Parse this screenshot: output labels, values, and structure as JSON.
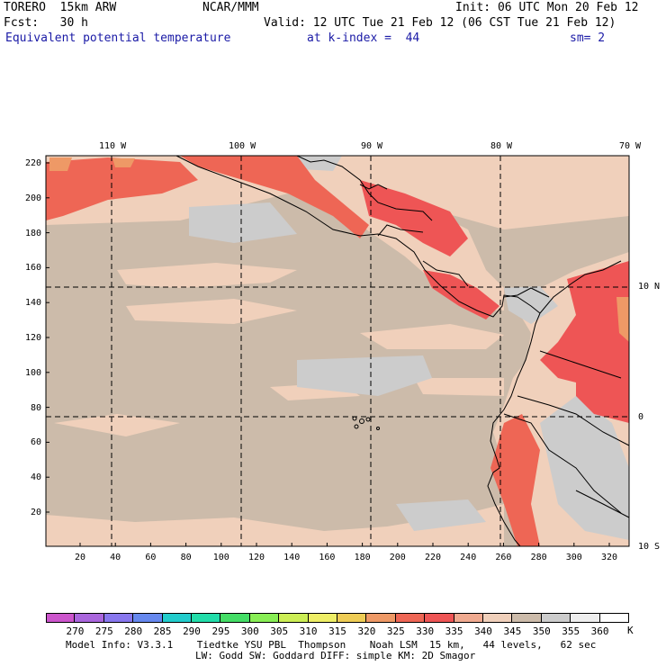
{
  "header": {
    "model": "TORERO  15km ARW",
    "org": "NCAR/MMM",
    "init": "Init: 06 UTC Mon 20 Feb 12",
    "fcst": "Fcst:   30 h",
    "valid": "Valid: 12 UTC Tue 21 Feb 12 (06 CST Tue 21 Feb 12)",
    "field": "Equivalent potential temperature",
    "level": "at k-index =  44",
    "smooth": "sm= 2"
  },
  "map": {
    "lon_labels": [
      "110 W",
      "100 W",
      "90 W",
      "80 W",
      "70 W"
    ],
    "lat_labels": [
      "10 N",
      "0",
      "10 S"
    ],
    "y_ticks": [
      "220",
      "200",
      "180",
      "160",
      "140",
      "120",
      "100",
      "80",
      "60",
      "40",
      "20"
    ],
    "x_ticks": [
      "20",
      "40",
      "60",
      "80",
      "100",
      "120",
      "140",
      "160",
      "180",
      "200",
      "220",
      "240",
      "260",
      "280",
      "300",
      "320"
    ]
  },
  "colorbar": {
    "labels": [
      "270",
      "275",
      "280",
      "285",
      "290",
      "295",
      "300",
      "305",
      "310",
      "315",
      "320",
      "325",
      "330",
      "335",
      "340",
      "345",
      "350",
      "355",
      "360"
    ],
    "unit": "K",
    "colors": [
      "#cc55cc",
      "#aa66dd",
      "#8877ee",
      "#6688ee",
      "#22cccc",
      "#22ddaa",
      "#44dd66",
      "#88ee55",
      "#ccee55",
      "#eeee66",
      "#eecc55",
      "#ee9966",
      "#ee6655",
      "#ee5555",
      "#f0aa90",
      "#f0d0bb",
      "#ccbbaa",
      "#cccccc",
      "#eeeeee",
      "#ffffff"
    ]
  },
  "footer": {
    "line1": "Model Info: V3.3.1    Tiedtke YSU PBL  Thompson    Noah LSM  15 km,   44 levels,   62 sec",
    "line2": "LW: Godd SW: Goddard DIFF: simple KM: 2D Smagor"
  }
}
